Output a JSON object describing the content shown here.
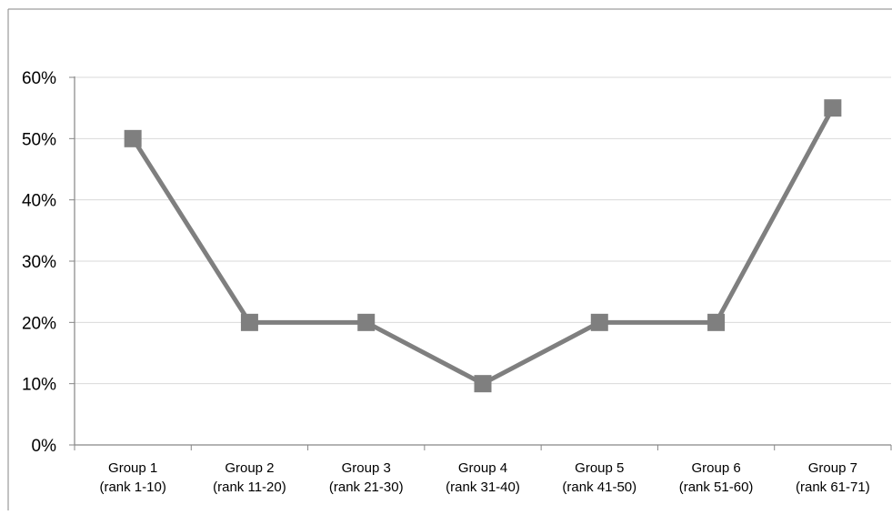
{
  "chart_data": {
    "type": "line",
    "title": "",
    "xlabel": "",
    "ylabel": "",
    "ylim": [
      0,
      0.6
    ],
    "yticks": [
      "0%",
      "10%",
      "20%",
      "30%",
      "40%",
      "50%",
      "60%"
    ],
    "categories": [
      [
        "Group 1",
        "(rank 1-10)"
      ],
      [
        "Group 2",
        "(rank 11-20)"
      ],
      [
        "Group 3",
        "(rank 21-30)"
      ],
      [
        "Group 4",
        "(rank 31-40)"
      ],
      [
        "Group 5",
        "(rank 41-50)"
      ],
      [
        "Group 6",
        "(rank 51-60)"
      ],
      [
        "Group 7",
        "(rank 61-71)"
      ]
    ],
    "series": [
      {
        "values": [
          0.5,
          0.2,
          0.2,
          0.1,
          0.2,
          0.2,
          0.55
        ]
      }
    ],
    "grid": true,
    "legend": "none",
    "colors": {
      "line": "#7f7f7f",
      "marker": "#7f7f7f",
      "grid": "#d9d9d9",
      "axis": "#868686",
      "border": "#868686"
    },
    "marker": "square"
  }
}
